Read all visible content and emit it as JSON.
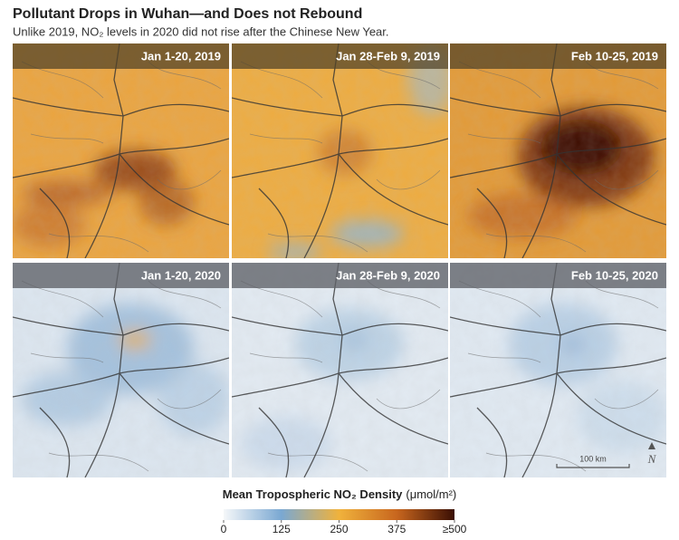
{
  "header": {
    "title": "Pollutant Drops in Wuhan—and Does not Rebound",
    "subtitle": "Unlike 2019, NO₂ levels in 2020 did not rise after the Chinese New Year."
  },
  "panels": [
    "Jan 1-20, 2019",
    "Jan 28-Feb 9, 2019",
    "Feb 10-25, 2019",
    "Jan 1-20, 2020",
    "Jan 28-Feb 9, 2020",
    "Feb 10-25, 2020"
  ],
  "scale_label": "100 km",
  "north": "N",
  "colorbar": {
    "title": "Mean Tropospheric NO₂ Density",
    "unit": "(μmol/m²)",
    "range": [
      0,
      500
    ],
    "ticks": [
      0,
      125,
      250,
      375,
      {
        "value": 500,
        "label": "≥500"
      }
    ]
  }
}
